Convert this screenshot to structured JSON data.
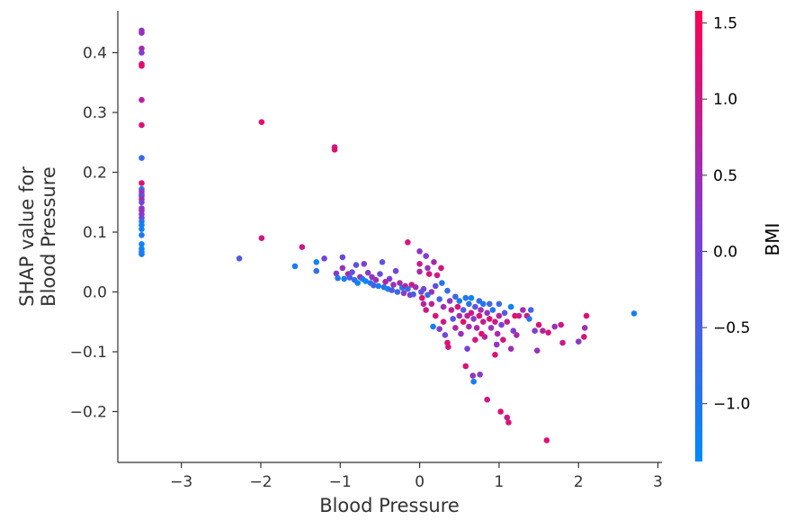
{
  "chart_data": {
    "type": "scatter",
    "title": "",
    "xlabel": "Blood Pressure",
    "ylabel_lines": [
      "SHAP value for",
      "Blood Pressure"
    ],
    "xlim": [
      -3.8,
      3.05
    ],
    "ylim": [
      -0.285,
      0.47
    ],
    "xticks": [
      -3,
      -2,
      -1,
      0,
      1,
      2,
      3
    ],
    "xtick_labels": [
      "−3",
      "−2",
      "−1",
      "0",
      "1",
      "2",
      "3"
    ],
    "yticks": [
      -0.2,
      -0.1,
      0.0,
      0.1,
      0.2,
      0.3,
      0.4
    ],
    "ytick_labels": [
      "−0.2",
      "−0.1",
      "0.0",
      "0.1",
      "0.2",
      "0.3",
      "0.4"
    ],
    "colorbar": {
      "label": "BMI",
      "range": [
        -1.38,
        1.58
      ],
      "ticks": [
        -1.0,
        -0.5,
        0.0,
        0.5,
        1.0,
        1.5
      ],
      "tick_labels": [
        "−1.0",
        "−0.5",
        "0.0",
        "0.5",
        "1.0",
        "1.5"
      ],
      "color_low": "#008bfb",
      "color_mid": "#7c3fd6",
      "color_high": "#ff0052"
    },
    "points": [
      [
        -3.5,
        0.437,
        0.3
      ],
      [
        -3.5,
        0.433,
        0.4
      ],
      [
        -3.5,
        0.407,
        0.6
      ],
      [
        -3.5,
        0.4,
        0.1
      ],
      [
        -3.5,
        0.381,
        1.2
      ],
      [
        -3.5,
        0.378,
        1.3
      ],
      [
        -3.5,
        0.321,
        0.8
      ],
      [
        -3.5,
        0.279,
        1.1
      ],
      [
        -3.5,
        0.224,
        -0.7
      ],
      [
        -3.5,
        0.182,
        1.2
      ],
      [
        -3.5,
        0.172,
        -1.0
      ],
      [
        -3.5,
        0.168,
        0.3
      ],
      [
        -3.5,
        0.163,
        0.5
      ],
      [
        -3.5,
        0.16,
        -0.3
      ],
      [
        -3.5,
        0.155,
        0.7
      ],
      [
        -3.5,
        0.15,
        0.0
      ],
      [
        -3.5,
        0.14,
        0.3
      ],
      [
        -3.5,
        0.136,
        0.4
      ],
      [
        -3.5,
        0.13,
        0.2
      ],
      [
        -3.5,
        0.124,
        0.1
      ],
      [
        -3.5,
        0.118,
        -0.9
      ],
      [
        -3.5,
        0.112,
        -1.1
      ],
      [
        -3.5,
        0.105,
        -1.2
      ],
      [
        -3.5,
        0.095,
        -1.0
      ],
      [
        -3.5,
        0.08,
        -1.2
      ],
      [
        -3.5,
        0.072,
        -1.3
      ],
      [
        -3.5,
        0.067,
        -1.0
      ],
      [
        -3.5,
        0.063,
        -1.1
      ],
      [
        -2.27,
        0.056,
        -0.4
      ],
      [
        -1.99,
        0.284,
        1.3
      ],
      [
        -1.99,
        0.09,
        1.1
      ],
      [
        -1.57,
        0.043,
        -1.1
      ],
      [
        -1.48,
        0.075,
        1.0
      ],
      [
        -1.3,
        0.035,
        -0.8
      ],
      [
        -1.3,
        0.05,
        -1.2
      ],
      [
        -1.2,
        0.056,
        0.0
      ],
      [
        -1.07,
        0.242,
        0.9
      ],
      [
        -1.07,
        0.238,
        1.3
      ],
      [
        -1.05,
        0.031,
        0.2
      ],
      [
        -1.03,
        0.023,
        -1.0
      ],
      [
        -0.97,
        0.058,
        -0.1
      ],
      [
        -0.97,
        0.04,
        0.4
      ],
      [
        -0.95,
        0.022,
        -1.1
      ],
      [
        -0.9,
        0.03,
        0.8
      ],
      [
        -0.88,
        0.024,
        -0.5
      ],
      [
        -0.85,
        0.033,
        -0.2
      ],
      [
        -0.82,
        0.02,
        -0.8
      ],
      [
        -0.8,
        0.045,
        -0.3
      ],
      [
        -0.78,
        0.015,
        -1.2
      ],
      [
        -0.75,
        0.025,
        0.6
      ],
      [
        -0.72,
        0.022,
        -0.9
      ],
      [
        -0.7,
        0.047,
        0.1
      ],
      [
        -0.68,
        0.018,
        -1.3
      ],
      [
        -0.65,
        0.032,
        0.2
      ],
      [
        -0.62,
        0.015,
        -1.0
      ],
      [
        -0.6,
        0.025,
        0.3
      ],
      [
        -0.58,
        0.011,
        -0.6
      ],
      [
        -0.55,
        0.02,
        0.5
      ],
      [
        -0.52,
        0.01,
        -1.1
      ],
      [
        -0.5,
        0.03,
        -0.2
      ],
      [
        -0.47,
        0.05,
        -0.3
      ],
      [
        -0.45,
        0.008,
        -0.9
      ],
      [
        -0.43,
        0.017,
        0.7
      ],
      [
        -0.4,
        0.005,
        -1.2
      ],
      [
        -0.38,
        0.022,
        0.1
      ],
      [
        -0.35,
        0.003,
        -0.4
      ],
      [
        -0.33,
        0.012,
        0.4
      ],
      [
        -0.3,
        0.035,
        0.0
      ],
      [
        -0.28,
        0.0,
        -0.7
      ],
      [
        -0.25,
        0.015,
        0.6
      ],
      [
        -0.22,
        0.007,
        -1.0
      ],
      [
        -0.2,
        -0.002,
        0.2
      ],
      [
        -0.18,
        0.01,
        0.8
      ],
      [
        -0.15,
        0.083,
        1.1
      ],
      [
        -0.15,
        0.005,
        -0.8
      ],
      [
        -0.12,
        -0.005,
        0.3
      ],
      [
        -0.1,
        0.012,
        1.0
      ],
      [
        -0.08,
        -0.004,
        -0.5
      ],
      [
        -0.05,
        0.008,
        0.5
      ],
      [
        0.0,
        0.068,
        0.3
      ],
      [
        0.0,
        0.047,
        0.9
      ],
      [
        0.0,
        0.034,
        0.6
      ],
      [
        0.02,
        0.0,
        -0.3
      ],
      [
        0.03,
        -0.01,
        1.2
      ],
      [
        0.05,
        0.005,
        0.0
      ],
      [
        0.05,
        -0.02,
        0.7
      ],
      [
        0.08,
        0.06,
        0.2
      ],
      [
        0.08,
        -0.03,
        1.0
      ],
      [
        0.1,
        0.04,
        0.4
      ],
      [
        0.1,
        -0.005,
        -0.9
      ],
      [
        0.12,
        0.03,
        1.1
      ],
      [
        0.15,
        0.0,
        0.4
      ],
      [
        0.15,
        -0.02,
        0.8
      ],
      [
        0.17,
        -0.058,
        -1.1
      ],
      [
        0.18,
        0.05,
        0.6
      ],
      [
        0.2,
        0.01,
        -0.2
      ],
      [
        0.2,
        -0.04,
        1.2
      ],
      [
        0.22,
        0.028,
        1.0
      ],
      [
        0.25,
        -0.062,
        0.2
      ],
      [
        0.25,
        -0.012,
        -0.6
      ],
      [
        0.27,
        0.04,
        1.1
      ],
      [
        0.28,
        0.015,
        -1.0
      ],
      [
        0.3,
        -0.025,
        0.5
      ],
      [
        0.3,
        -0.05,
        1.0
      ],
      [
        0.32,
        -0.072,
        -0.1
      ],
      [
        0.35,
        0.002,
        -0.8
      ],
      [
        0.35,
        -0.085,
        1.2
      ],
      [
        0.36,
        -0.092,
        1.1
      ],
      [
        0.38,
        -0.015,
        0.3
      ],
      [
        0.4,
        -0.03,
        0.9
      ],
      [
        0.42,
        -0.045,
        -0.3
      ],
      [
        0.45,
        -0.008,
        -0.7
      ],
      [
        0.45,
        -0.06,
        0.7
      ],
      [
        0.48,
        -0.025,
        1.2
      ],
      [
        0.5,
        -0.04,
        0.5
      ],
      [
        0.5,
        -0.015,
        -1.1
      ],
      [
        0.52,
        -0.07,
        0.4
      ],
      [
        0.55,
        -0.03,
        -0.5
      ],
      [
        0.55,
        -0.05,
        1.3
      ],
      [
        0.58,
        -0.01,
        -1.0
      ],
      [
        0.58,
        -0.124,
        1.2
      ],
      [
        0.6,
        -0.04,
        0.8
      ],
      [
        0.6,
        -0.095,
        0.1
      ],
      [
        0.62,
        -0.02,
        -0.9
      ],
      [
        0.62,
        -0.058,
        0.6
      ],
      [
        0.65,
        -0.035,
        1.0
      ],
      [
        0.65,
        -0.01,
        -1.2
      ],
      [
        0.67,
        -0.14,
        0.3
      ],
      [
        0.68,
        -0.15,
        -1.1
      ],
      [
        0.68,
        -0.045,
        0.2
      ],
      [
        0.7,
        -0.025,
        -0.3
      ],
      [
        0.7,
        -0.08,
        1.1
      ],
      [
        0.72,
        -0.06,
        0.7
      ],
      [
        0.75,
        -0.04,
        1.2
      ],
      [
        0.75,
        -0.015,
        -0.8
      ],
      [
        0.76,
        -0.138,
        0.2
      ],
      [
        0.77,
        -0.03,
        0.5
      ],
      [
        0.78,
        -0.07,
        1.3
      ],
      [
        0.8,
        -0.05,
        0.9
      ],
      [
        0.8,
        -0.02,
        -1.0
      ],
      [
        0.82,
        -0.075,
        0.8
      ],
      [
        0.85,
        -0.035,
        0.3
      ],
      [
        0.85,
        -0.18,
        1.0
      ],
      [
        0.88,
        -0.045,
        1.2
      ],
      [
        0.88,
        -0.02,
        -0.6
      ],
      [
        0.9,
        -0.06,
        0.4
      ],
      [
        0.92,
        -0.03,
        -0.9
      ],
      [
        0.95,
        -0.105,
        1.2
      ],
      [
        0.95,
        -0.05,
        1.0
      ],
      [
        0.97,
        -0.088,
        0.3
      ],
      [
        0.98,
        -0.07,
        0.6
      ],
      [
        1.0,
        -0.04,
        0.8
      ],
      [
        1.0,
        -0.02,
        -0.7
      ],
      [
        1.02,
        -0.2,
        1.2
      ],
      [
        1.03,
        -0.055,
        0.1
      ],
      [
        1.05,
        -0.08,
        1.1
      ],
      [
        1.07,
        -0.035,
        -0.4
      ],
      [
        1.1,
        -0.05,
        0.9
      ],
      [
        1.1,
        -0.21,
        0.9
      ],
      [
        1.12,
        -0.218,
        1.1
      ],
      [
        1.15,
        -0.095,
        0.5
      ],
      [
        1.15,
        -0.025,
        -1.2
      ],
      [
        1.18,
        -0.065,
        0.2
      ],
      [
        1.2,
        -0.04,
        1.3
      ],
      [
        1.22,
        -0.072,
        0.6
      ],
      [
        1.25,
        -0.04,
        0.9
      ],
      [
        1.3,
        -0.03,
        0.5
      ],
      [
        1.35,
        -0.04,
        1.0
      ],
      [
        1.38,
        -0.045,
        -1.0
      ],
      [
        1.4,
        -0.03,
        -0.6
      ],
      [
        1.45,
        -0.065,
        0.2
      ],
      [
        1.48,
        -0.098,
        0.4
      ],
      [
        1.5,
        -0.055,
        1.2
      ],
      [
        1.55,
        -0.065,
        0.8
      ],
      [
        1.6,
        -0.248,
        1.2
      ],
      [
        1.62,
        -0.068,
        1.1
      ],
      [
        1.7,
        -0.058,
        0.5
      ],
      [
        1.78,
        -0.055,
        1.0
      ],
      [
        1.8,
        -0.085,
        0.9
      ],
      [
        2.0,
        -0.083,
        0.3
      ],
      [
        2.07,
        -0.075,
        1.1
      ],
      [
        2.08,
        -0.06,
        0.5
      ],
      [
        2.1,
        -0.04,
        1.2
      ],
      [
        2.7,
        -0.036,
        -1.1
      ]
    ]
  }
}
